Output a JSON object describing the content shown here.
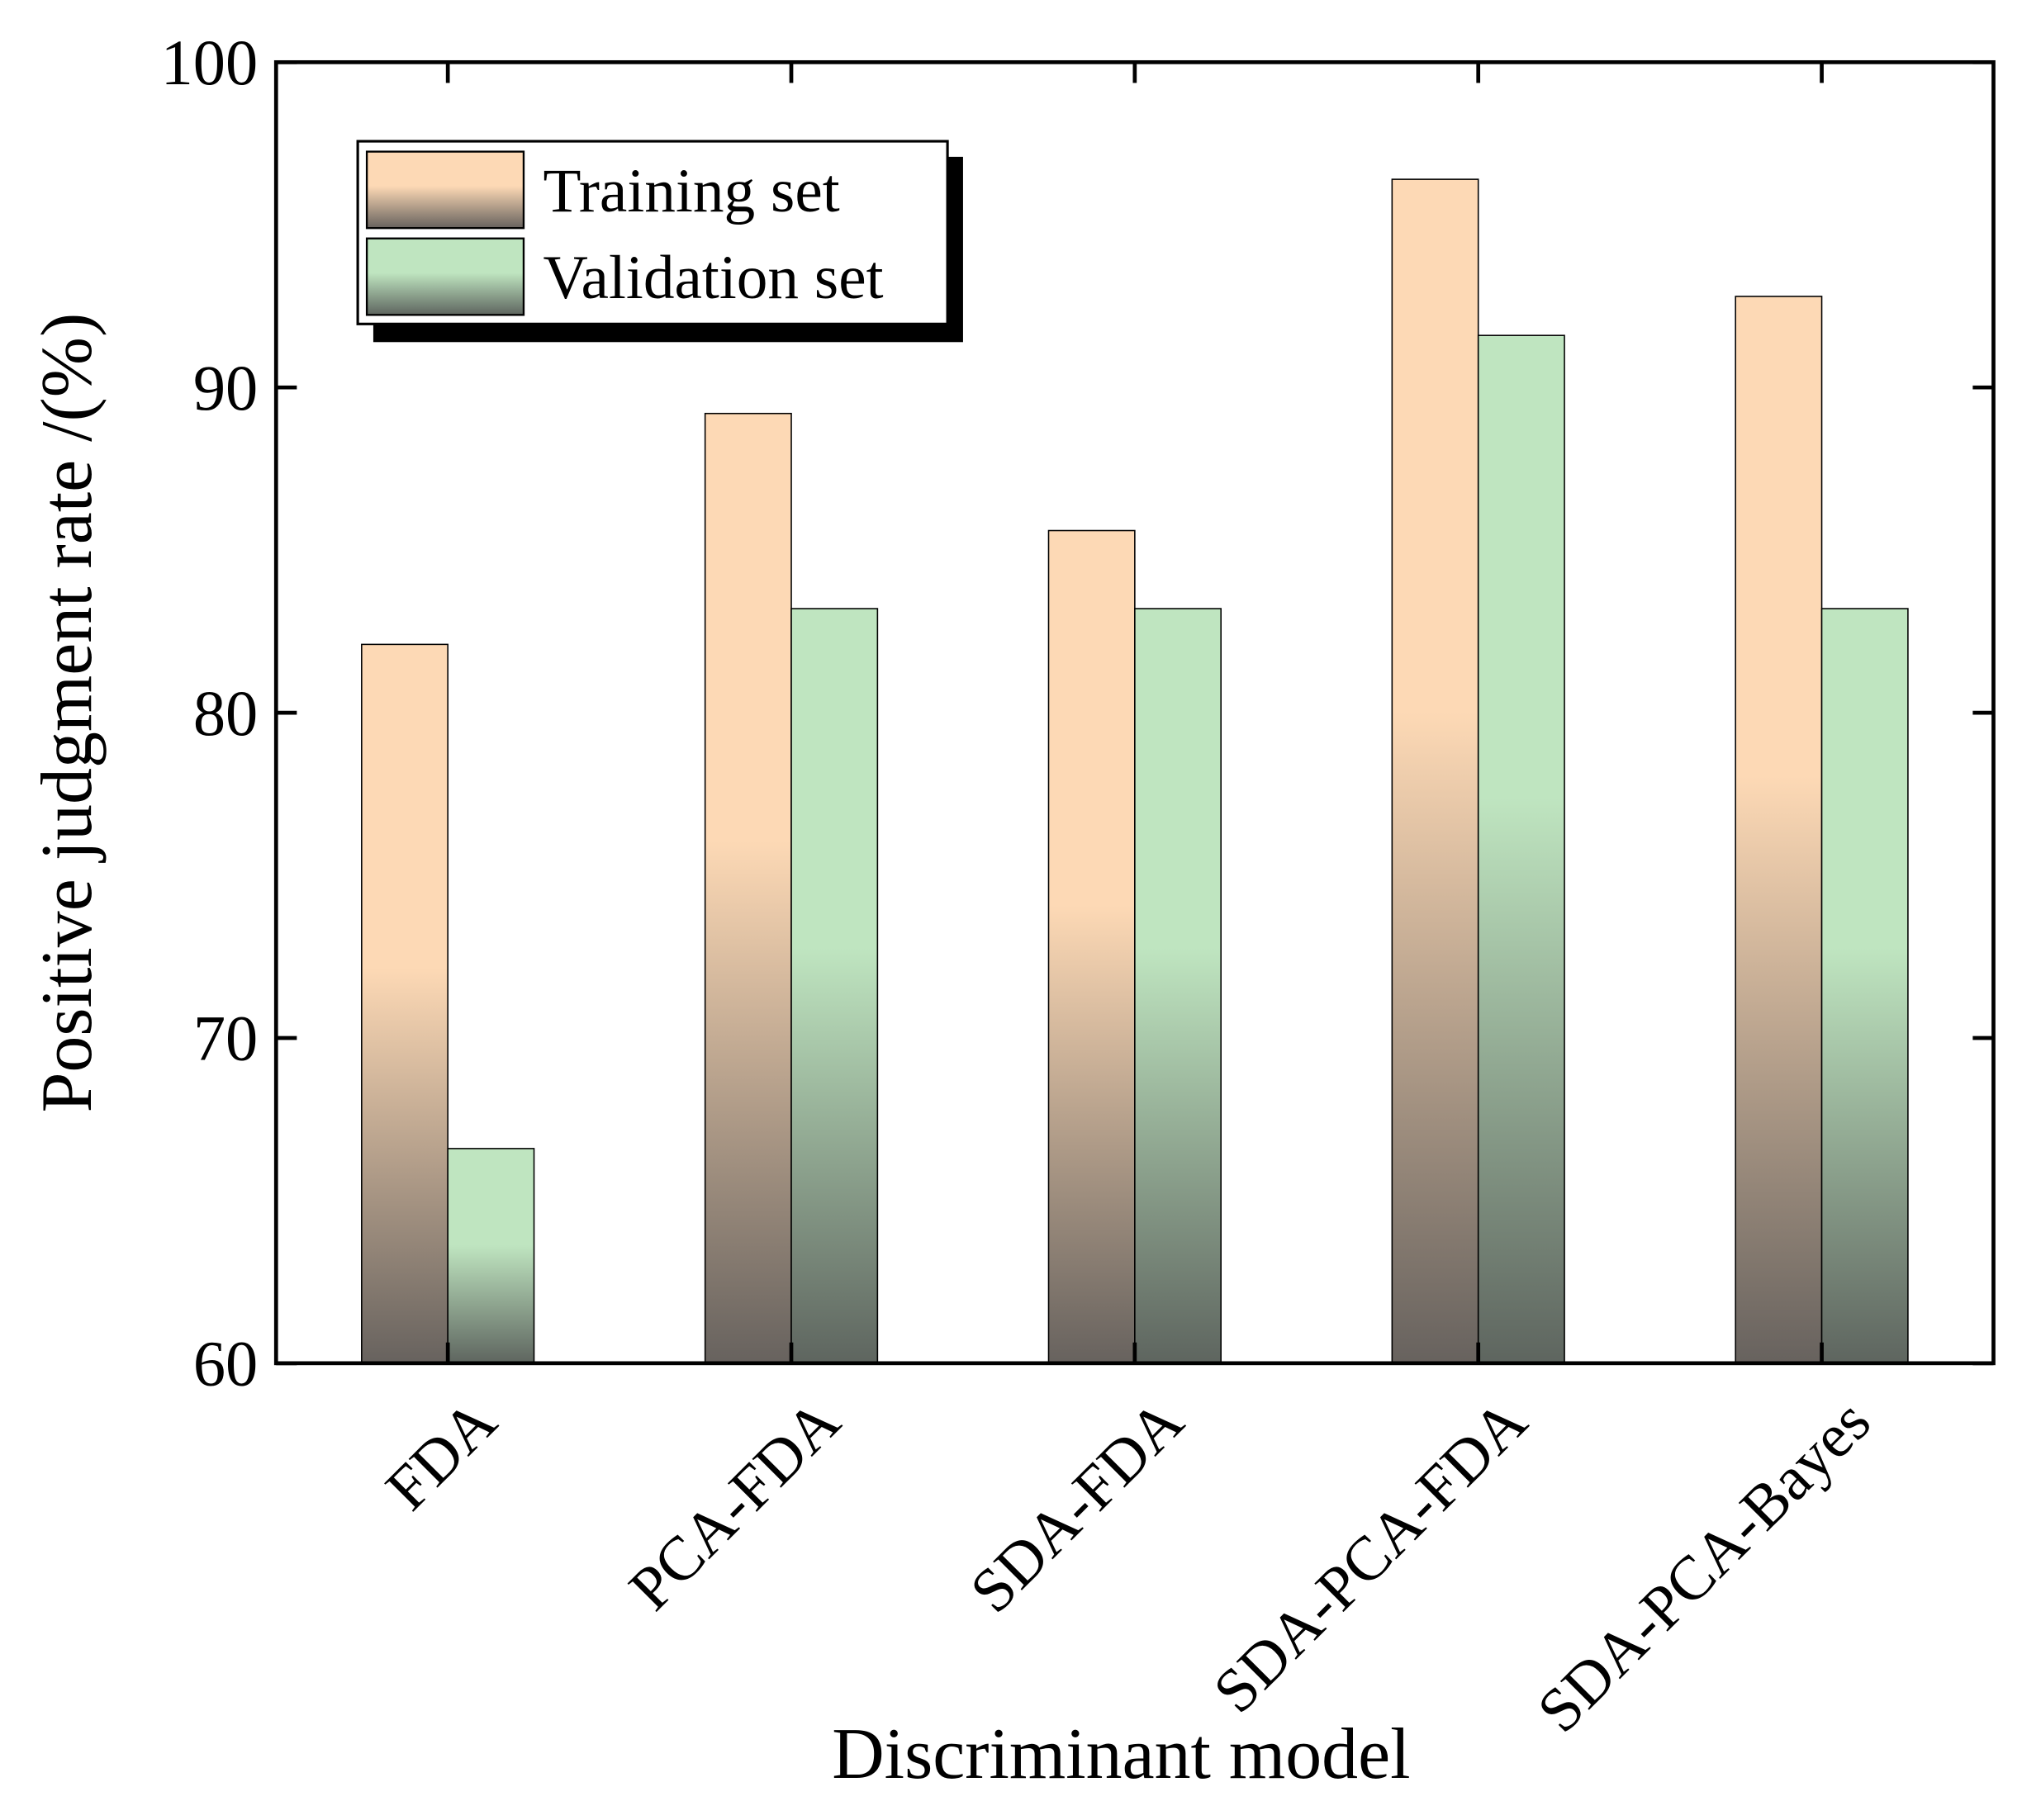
{
  "chart_data": {
    "type": "bar",
    "x_label": "Discriminant model",
    "y_label": "Positive judgment rate /(%)",
    "categories": [
      "FDA",
      "PCA-FDA",
      "SDA-FDA",
      "SDA-PCA-FDA",
      "SDA-PCA-Bayes"
    ],
    "series": [
      {
        "name": "Training set",
        "color": "#fdd9b5",
        "values": [
          82.1,
          89.2,
          85.6,
          96.4,
          92.8
        ]
      },
      {
        "name": "Validation set",
        "color": "#bfe5c0",
        "values": [
          66.6,
          83.2,
          83.2,
          91.6,
          83.2
        ]
      }
    ],
    "ylim": [
      60,
      100
    ],
    "yticks": [
      60,
      70,
      80,
      90,
      100
    ],
    "legend": "upper left"
  }
}
